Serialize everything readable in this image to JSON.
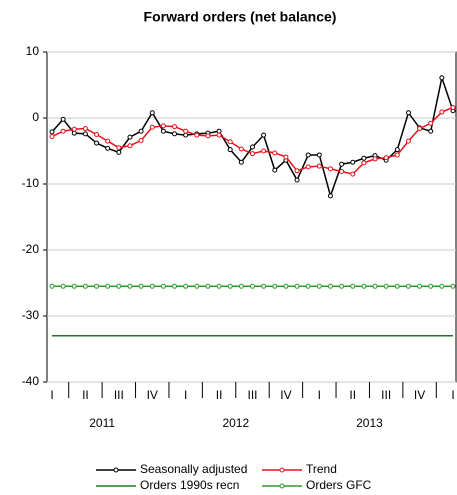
{
  "chart_data": {
    "type": "line",
    "title": "Forward orders (net balance)",
    "categories": [
      "I",
      null,
      null,
      "II",
      null,
      null,
      "III",
      null,
      null,
      "IV",
      null,
      null,
      "I",
      null,
      null,
      "II",
      null,
      null,
      "III",
      null,
      null,
      "IV",
      null,
      null,
      "I",
      null,
      null,
      "II",
      null,
      null,
      "III",
      null,
      null,
      "IV",
      null,
      null,
      "I"
    ],
    "year_labels": [
      "2011",
      "2012",
      "2013"
    ],
    "ylim": [
      -40,
      10
    ],
    "yticks": [
      -40,
      -30,
      -20,
      -10,
      0,
      10
    ],
    "grid": true,
    "series": [
      {
        "name": "Seasonally adjusted",
        "color": "#000000",
        "markers": true,
        "values": [
          -2.1,
          -0.2,
          -2.3,
          -2.4,
          -3.8,
          -4.6,
          -5.2,
          -2.9,
          -2.0,
          0.8,
          -2.0,
          -2.4,
          -2.6,
          -2.4,
          -2.3,
          -2.0,
          -4.8,
          -6.7,
          -4.4,
          -2.6,
          -7.9,
          -6.4,
          -9.4,
          -5.6,
          -5.6,
          -11.8,
          -7.0,
          -6.7,
          -6.1,
          -5.7,
          -6.4,
          -4.8,
          0.8,
          -1.5,
          -2.0,
          6.1,
          1.1
        ]
      },
      {
        "name": "Trend",
        "color": "#e8101a",
        "markers": true,
        "values": [
          -2.8,
          -2.0,
          -1.7,
          -1.6,
          -2.5,
          -3.5,
          -4.5,
          -4.2,
          -3.4,
          -1.4,
          -1.2,
          -1.3,
          -2.0,
          -2.6,
          -2.7,
          -2.6,
          -3.6,
          -4.7,
          -5.4,
          -5.0,
          -5.3,
          -5.9,
          -8.0,
          -7.4,
          -7.3,
          -7.7,
          -8.1,
          -8.5,
          -6.8,
          -6.2,
          -6.0,
          -5.6,
          -3.5,
          -1.6,
          -0.8,
          0.9,
          1.6
        ]
      },
      {
        "name": "Orders 1990s recn",
        "color": "#1e7a1e",
        "markers": false,
        "values": [
          -33,
          -33,
          -33,
          -33,
          -33,
          -33,
          -33,
          -33,
          -33,
          -33,
          -33,
          -33,
          -33,
          -33,
          -33,
          -33,
          -33,
          -33,
          -33,
          -33,
          -33,
          -33,
          -33,
          -33,
          -33,
          -33,
          -33,
          -33,
          -33,
          -33,
          -33,
          -33,
          -33,
          -33,
          -33,
          -33,
          -33
        ]
      },
      {
        "name": "Orders GFC",
        "color": "#2e9a2e",
        "markers": true,
        "values": [
          -25.5,
          -25.5,
          -25.5,
          -25.5,
          -25.5,
          -25.5,
          -25.5,
          -25.5,
          -25.5,
          -25.5,
          -25.5,
          -25.5,
          -25.5,
          -25.5,
          -25.5,
          -25.5,
          -25.5,
          -25.5,
          -25.5,
          -25.5,
          -25.5,
          -25.5,
          -25.5,
          -25.5,
          -25.5,
          -25.5,
          -25.5,
          -25.5,
          -25.5,
          -25.5,
          -25.5,
          -25.5,
          -25.5,
          -25.5,
          -25.5,
          -25.5,
          -25.5
        ]
      }
    ]
  }
}
